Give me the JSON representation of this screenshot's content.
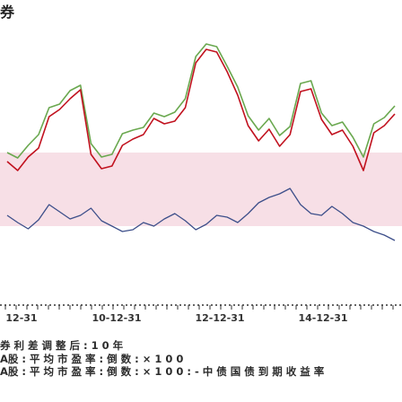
{
  "header": {
    "title": "券"
  },
  "watermark": {
    "text": ""
  },
  "colors": {
    "green": "#6aa84f",
    "red": "#c1121f",
    "blue": "#3d4f8a",
    "band": "#f7dfe6",
    "axis": "#333333"
  },
  "chart_data": {
    "type": "line",
    "title": "",
    "xlabel": "",
    "ylabel": "",
    "x_ticks": [
      "12-31",
      "10-12-31",
      "12-12-31",
      "14-12-31"
    ],
    "series": [
      {
        "color": "#6aa84f",
        "values": [
          170,
          176,
          162,
          150,
          120,
          116,
          101,
          95,
          160,
          175,
          172,
          149,
          145,
          142,
          126,
          130,
          125,
          110,
          63,
          49,
          52,
          74,
          97,
          129,
          145,
          132,
          151,
          141,
          93,
          90,
          126,
          140,
          136,
          153,
          175,
          138,
          131,
          118
        ]
      },
      {
        "color": "#c1121f",
        "values": [
          180,
          190,
          175,
          165,
          130,
          122,
          110,
          100,
          172,
          188,
          185,
          162,
          155,
          150,
          132,
          138,
          135,
          120,
          70,
          55,
          58,
          80,
          106,
          140,
          157,
          144,
          163,
          150,
          102,
          99,
          133,
          150,
          145,
          163,
          190,
          148,
          140,
          127
        ]
      },
      {
        "color": "#3d4f8a",
        "values": [
          240,
          248,
          255,
          245,
          228,
          236,
          244,
          240,
          232,
          246,
          252,
          258,
          256,
          248,
          252,
          244,
          238,
          246,
          256,
          250,
          240,
          242,
          248,
          238,
          226,
          220,
          216,
          210,
          228,
          238,
          240,
          230,
          238,
          248,
          252,
          258,
          262,
          268
        ]
      }
    ]
  },
  "notes": [
    "券 利 差 调 整 后 : 1 0 年",
    "A股 : 平 均 市 盈 率 : 倒 数 : × 1 0 0",
    "A股 : 平 均 市 盈 率 : 倒 数 : × 1 0 0 : - 中 债 国 债 到 期 收 益 率"
  ]
}
